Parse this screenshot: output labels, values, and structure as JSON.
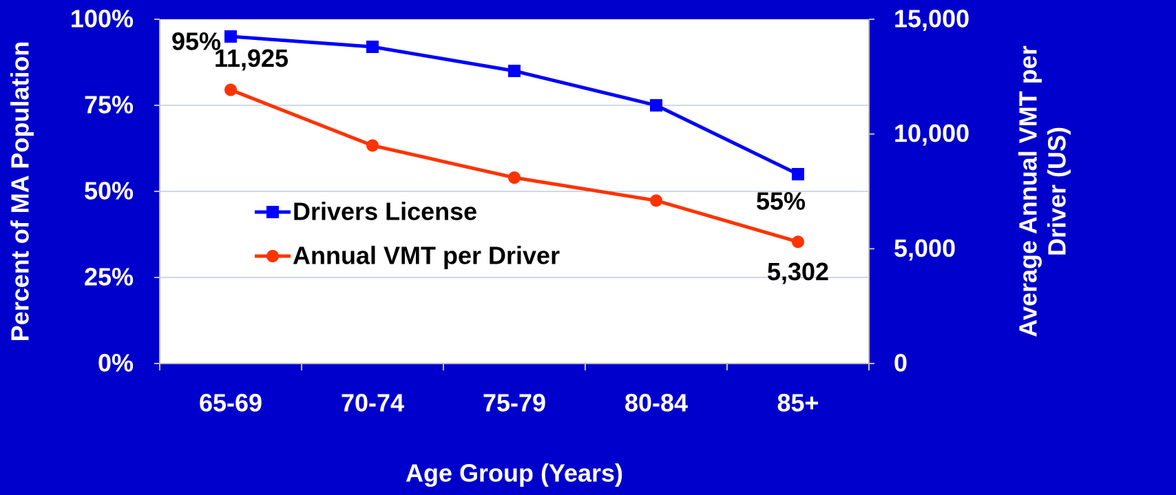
{
  "chart_data": {
    "type": "line",
    "xlabel": "Age Group (Years)",
    "ylabel": "Percent of MA Population",
    "y2label": [
      "Average Annual VMT per",
      "Driver (US)"
    ],
    "categories": [
      "65-69",
      "70-74",
      "75-79",
      "80-84",
      "85+"
    ],
    "series": [
      {
        "name": "Drivers License",
        "color": "#0000ff",
        "marker": "square",
        "axis": "y",
        "values": [
          95,
          92,
          85,
          75,
          55
        ],
        "value_labels": [
          "95%",
          null,
          null,
          null,
          "55%"
        ]
      },
      {
        "name": "Annual VMT per Driver",
        "color": "#ff3300",
        "marker": "circle",
        "axis": "y2",
        "values": [
          11925,
          9500,
          8100,
          7100,
          5302
        ],
        "value_labels": [
          "11,925",
          null,
          null,
          null,
          "5,302"
        ]
      }
    ],
    "ylim": [
      0,
      100
    ],
    "yticks": [
      {
        "value": 0,
        "label": "0%"
      },
      {
        "value": 25,
        "label": "25%"
      },
      {
        "value": 50,
        "label": "50%"
      },
      {
        "value": 75,
        "label": "75%"
      },
      {
        "value": 100,
        "label": "100%"
      }
    ],
    "y2lim": [
      0,
      15000
    ],
    "y2ticks": [
      0,
      {
        "value": 5000,
        "label": "5,000"
      },
      {
        "value": 10000,
        "label": "10,000"
      },
      {
        "value": 15000,
        "label": "15,000"
      }
    ],
    "grid": true
  }
}
